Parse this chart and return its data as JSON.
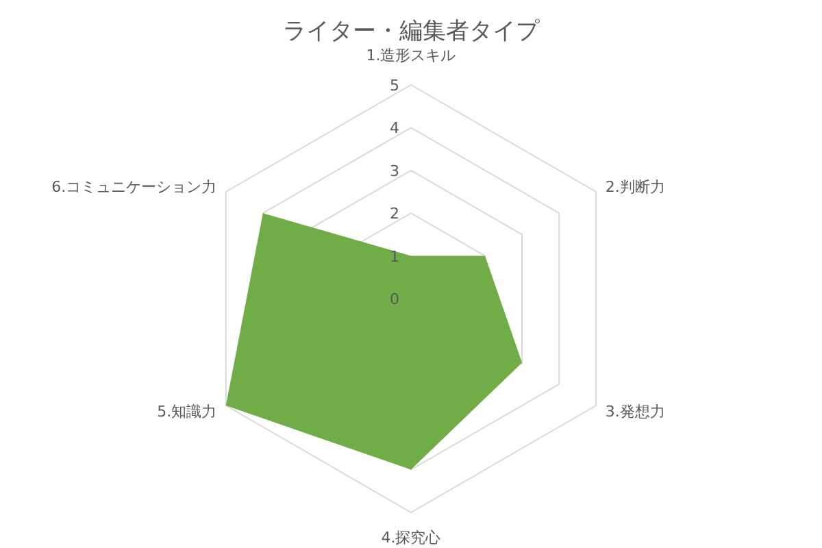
{
  "chart_data": {
    "type": "radar",
    "title": "ライター・編集者タイプ",
    "categories": [
      "1.造形スキル",
      "2.判断力",
      "3.発想力",
      "4.探究心",
      "5.知識力",
      "6.コミュニケーション力"
    ],
    "series": [
      {
        "color": "#70ad47",
        "values": [
          1,
          2,
          3,
          4,
          5,
          4
        ]
      }
    ],
    "ylim": [
      0,
      5
    ],
    "yticks": [
      0,
      1,
      2,
      3,
      4,
      5
    ],
    "grid": true
  }
}
